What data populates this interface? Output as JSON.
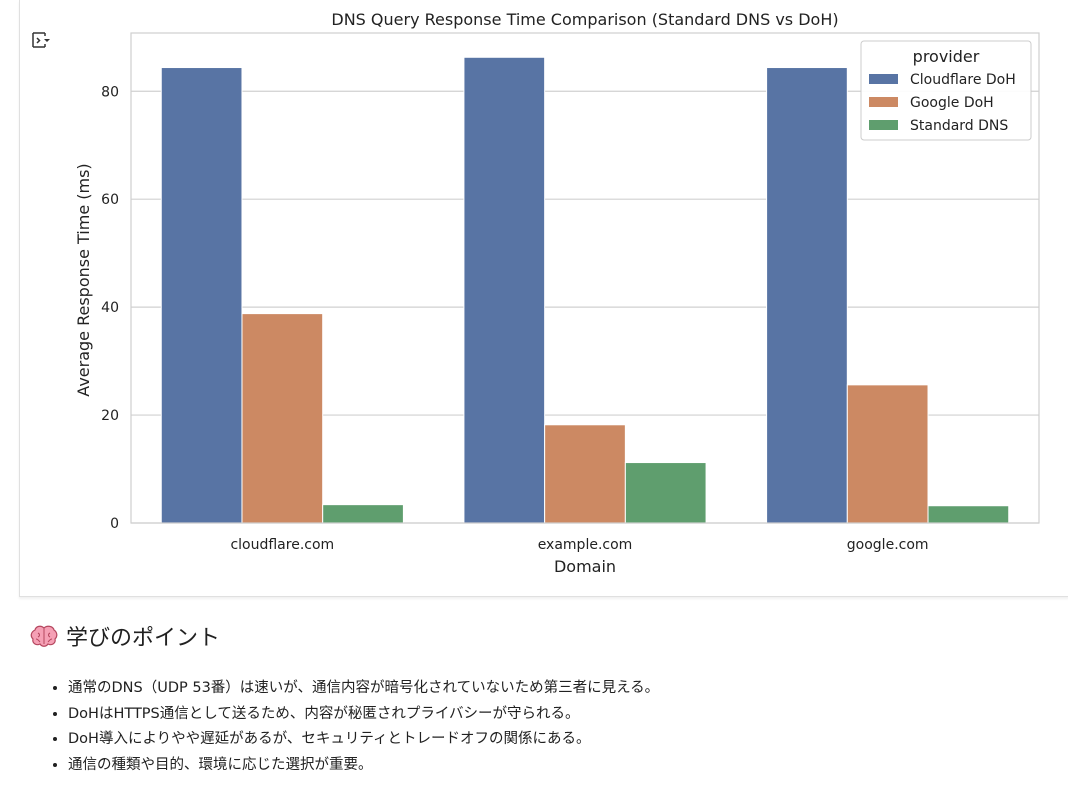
{
  "chart_data": {
    "type": "bar",
    "title": "DNS Query Response Time Comparison (Standard DNS vs DoH)",
    "xlabel": "Domain",
    "ylabel": "Average Response Time (ms)",
    "categories": [
      "cloudflare.com",
      "example.com",
      "google.com"
    ],
    "series": [
      {
        "name": "Cloudflare DoH",
        "color": "#5874a4",
        "values": [
          84.4,
          86.3,
          84.4
        ]
      },
      {
        "name": "Google DoH",
        "color": "#cc8963",
        "values": [
          38.8,
          18.2,
          25.6
        ]
      },
      {
        "name": "Standard DNS",
        "color": "#5f9e6e",
        "values": [
          3.4,
          11.2,
          3.2
        ]
      }
    ],
    "ylim": [
      0,
      90.8
    ],
    "yticks": [
      0,
      20,
      40,
      60,
      80
    ],
    "grid": true,
    "legend": {
      "title": "provider",
      "placement": "top-right"
    }
  },
  "toolbar": {
    "output_toggle_icon": "output-toggle-icon"
  },
  "learning": {
    "icon": "brain-icon",
    "heading": "学びのポイント",
    "points": [
      "通常のDNS（UDP 53番）は速いが、通信内容が暗号化されていないため第三者に見える。",
      "DoHはHTTPS通信として送るため、内容が秘匿されプライバシーが守られる。",
      "DoH導入によりやや遅延があるが、セキュリティとトレードオフの関係にある。",
      "通信の種類や目的、環境に応じた選択が重要。"
    ]
  }
}
